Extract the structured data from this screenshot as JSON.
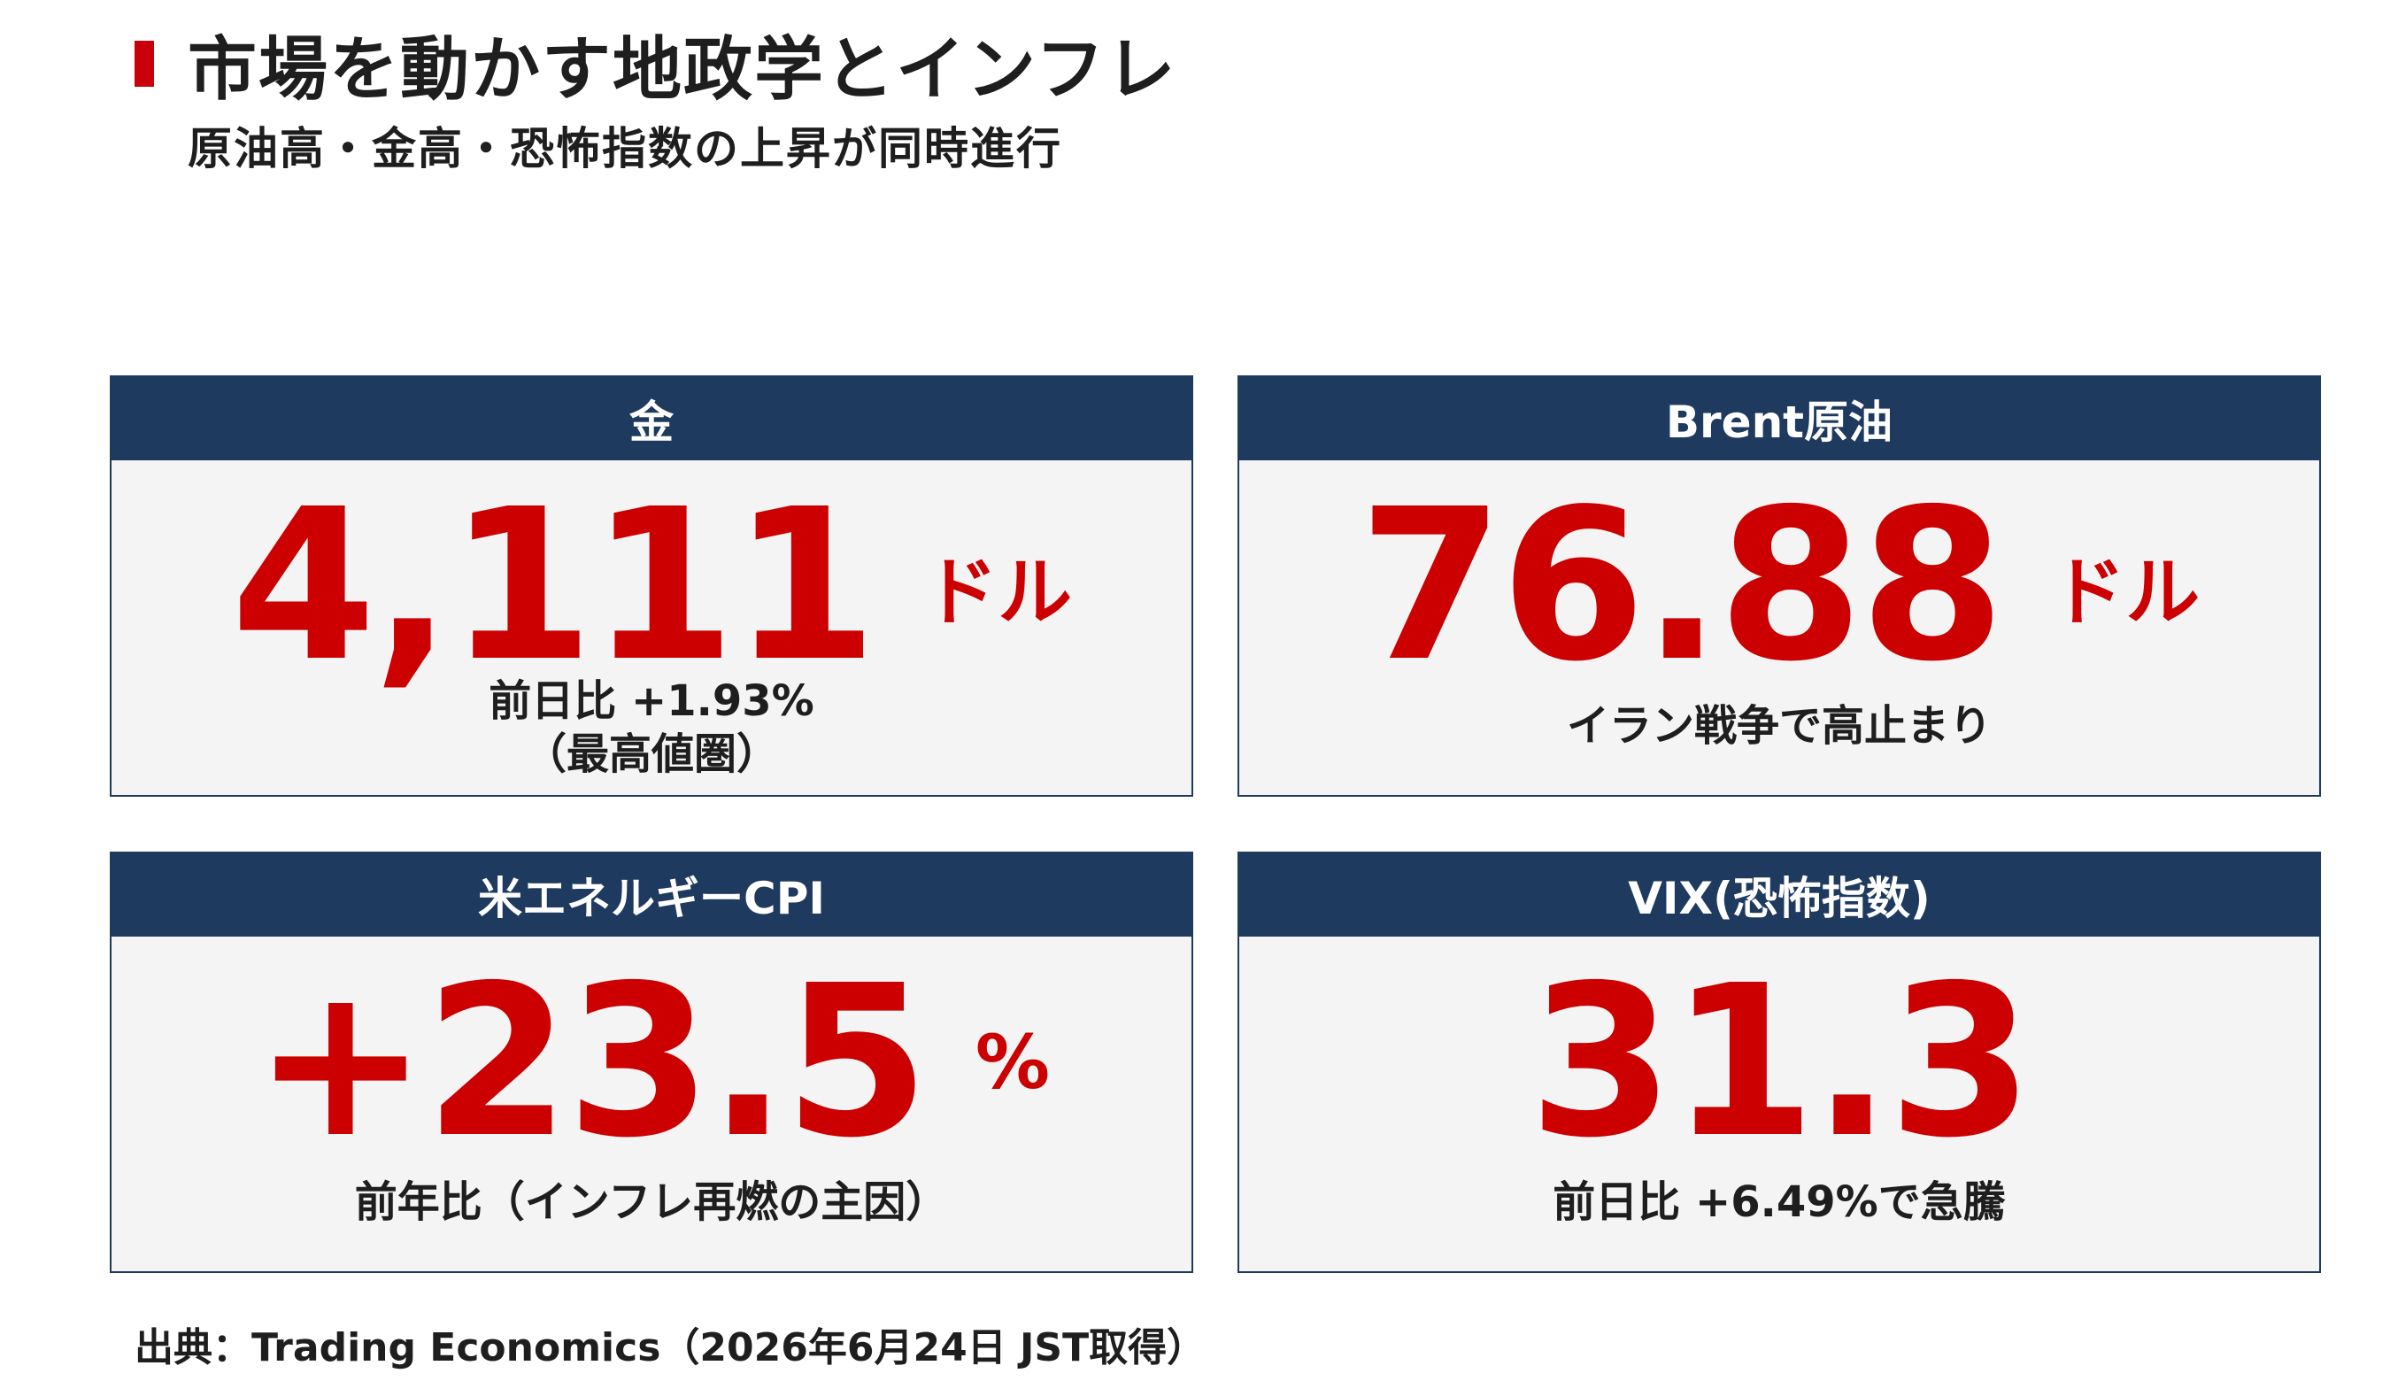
{
  "header": {
    "title": "市場を動かす地政学とインフレ",
    "subtitle": "原油高・金高・恐怖指数の上昇が同時進行",
    "accent_color": "#c9000b"
  },
  "cards": [
    {
      "label": "金",
      "value": "4,111",
      "unit": "ドル",
      "note": "前日比 +1.93%",
      "note2": "（最高値圏）"
    },
    {
      "label": "Brent原油",
      "value": "76.88",
      "unit": "ドル",
      "note": "イラン戦争で高止まり"
    },
    {
      "label": "米エネルギーCPI",
      "value": "+23.5",
      "unit": "%",
      "note": "前年比（インフレ再燃の主因）"
    },
    {
      "label": "VIX(恐怖指数)",
      "value": "31.3",
      "note": "前日比 +6.49%で急騰"
    }
  ],
  "colors": {
    "header_bg": "#1f3a5f",
    "value": "#cc0000",
    "card_bg": "#f4f4f5"
  },
  "footer": {
    "source": "出典：Trading Economics（2026年6月24日 JST取得）"
  }
}
